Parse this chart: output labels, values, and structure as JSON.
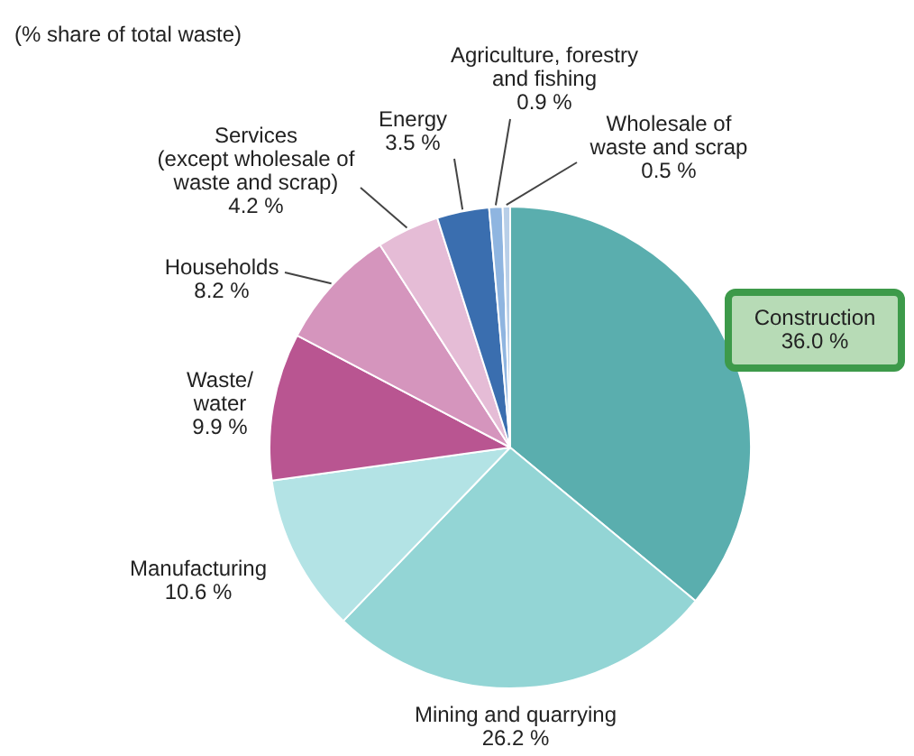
{
  "chart_data": {
    "type": "pie",
    "title": "(% share of total waste)",
    "categories": [
      "Construction",
      "Mining and quarrying",
      "Manufacturing",
      "Waste/\nwater",
      "Households",
      "Services\n(except wholesale of\nwaste and scrap)",
      "Energy",
      "Agriculture, forestry\nand fishing",
      "Wholesale of\nwaste and scrap"
    ],
    "values": [
      36.0,
      26.2,
      10.6,
      9.9,
      8.2,
      4.2,
      3.5,
      0.9,
      0.5
    ],
    "value_labels": [
      "36.0 %",
      "26.2 %",
      "10.6 %",
      "9.9 %",
      "8.2 %",
      "4.2 %",
      "3.5 %",
      "0.9 %",
      "0.5 %"
    ],
    "colors": [
      "#5aaeae",
      "#93d5d5",
      "#b3e3e5",
      "#b95591",
      "#d595bd",
      "#e5bcd6",
      "#3a6eaf",
      "#8fb5e0",
      "#b8cfe8"
    ],
    "legend": false
  }
}
